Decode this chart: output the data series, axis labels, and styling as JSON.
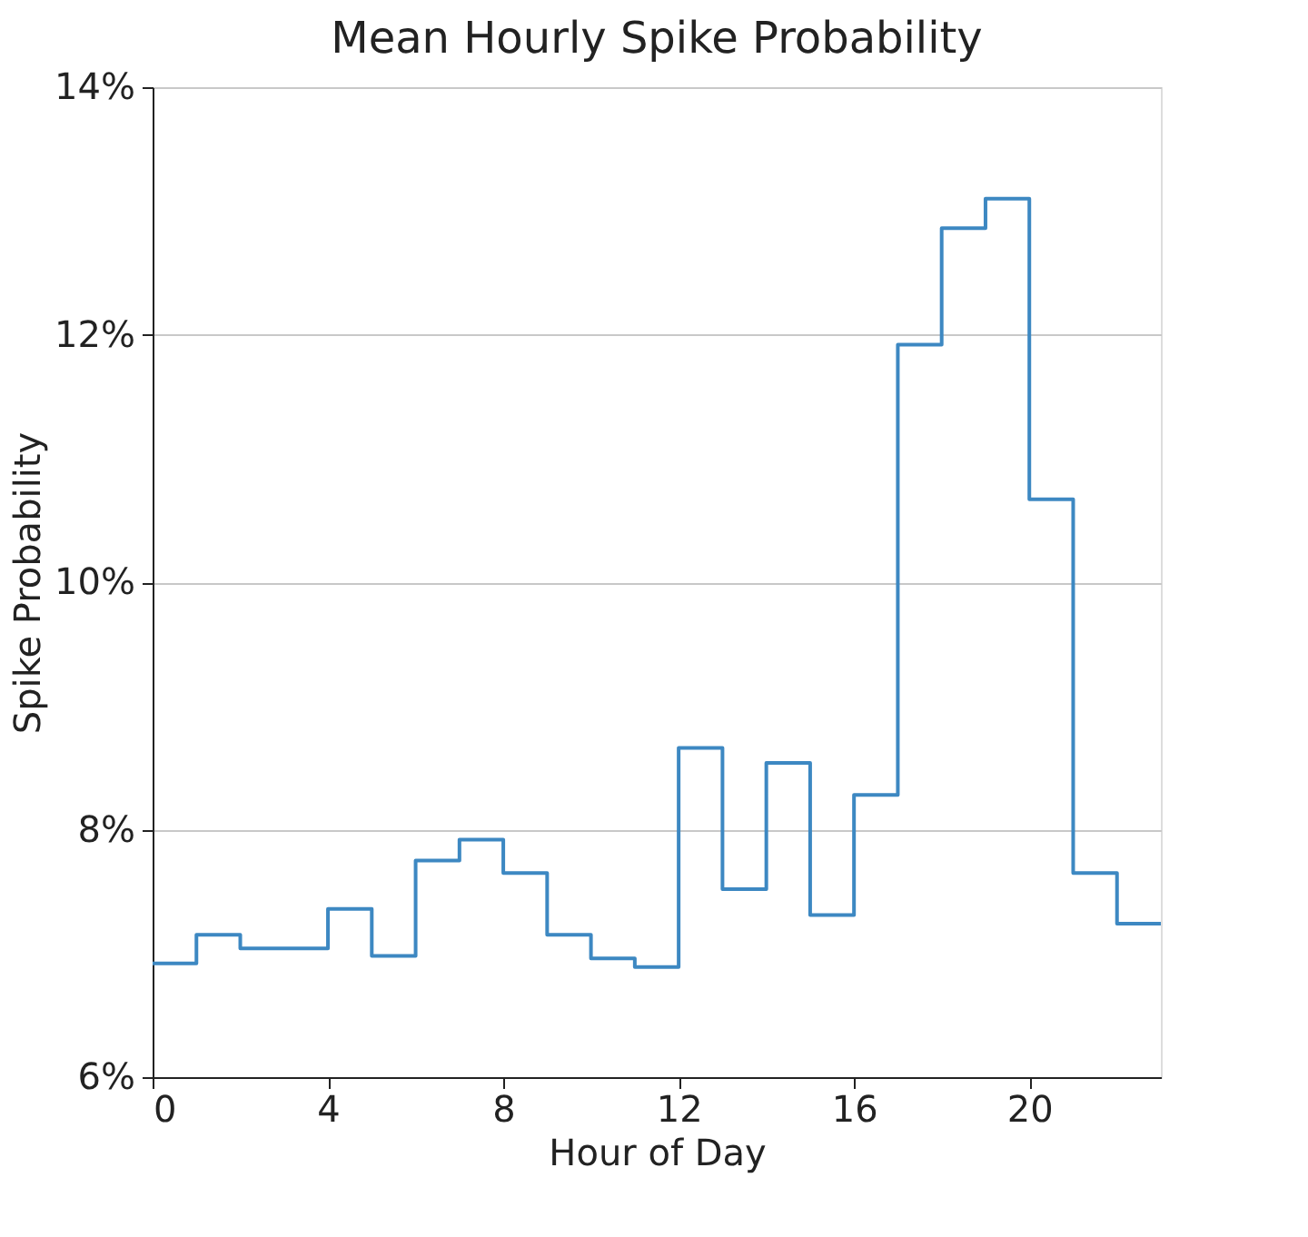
{
  "chart_data": {
    "type": "step",
    "title": "Mean Hourly Spike Probability",
    "xlabel": "Hour of Day",
    "ylabel": "Spike Probability",
    "x": [
      0,
      1,
      2,
      3,
      4,
      5,
      6,
      7,
      8,
      9,
      10,
      11,
      12,
      13,
      14,
      15,
      16,
      17,
      18,
      19,
      20,
      21,
      22,
      23
    ],
    "series": [
      {
        "color": "#3d88c2",
        "values": [
          6.92,
          7.15,
          7.04,
          7.04,
          7.36,
          6.98,
          7.75,
          7.92,
          7.65,
          7.15,
          6.96,
          6.89,
          8.66,
          7.52,
          8.54,
          7.31,
          8.28,
          11.92,
          12.86,
          13.1,
          10.67,
          7.65,
          7.24,
          7.24
        ]
      }
    ],
    "xlim": [
      0,
      23
    ],
    "xticks": [
      0,
      4,
      8,
      12,
      16,
      20
    ],
    "ylim": [
      6,
      14
    ],
    "yticks": [
      {
        "value": 6,
        "label": "6%"
      },
      {
        "value": 8,
        "label": "8%"
      },
      {
        "value": 10,
        "label": "10%"
      },
      {
        "value": 12,
        "label": "12%"
      },
      {
        "value": 14,
        "label": "14%"
      }
    ],
    "grid": "y",
    "line_style": "solid",
    "marker": "none"
  }
}
